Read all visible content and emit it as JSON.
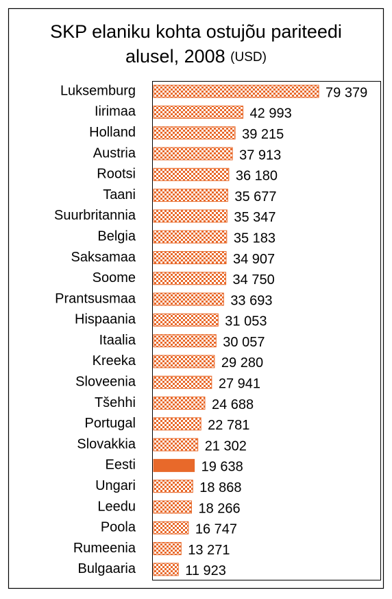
{
  "chart_data": {
    "type": "barh",
    "title": [
      "SKP elaniku kohta ostujõu pariteedi",
      "alusel, 2008"
    ],
    "unit": "(USD)",
    "categories": [
      "Luksemburg",
      "Iirimaa",
      "Holland",
      "Austria",
      "Rootsi",
      "Taani",
      "Suurbritannia",
      "Belgia",
      "Saksamaa",
      "Soome",
      "Prantsusmaa",
      "Hispaania",
      "Itaalia",
      "Kreeka",
      "Sloveenia",
      "Tšehhi",
      "Portugal",
      "Slovakkia",
      "Eesti",
      "Ungari",
      "Leedu",
      "Poola",
      "Rumeenia",
      "Bulgaaria"
    ],
    "values": [
      79379,
      42993,
      39215,
      37913,
      36180,
      35677,
      35347,
      35183,
      34907,
      34750,
      33693,
      31053,
      30057,
      29280,
      27941,
      24688,
      22781,
      21302,
      19638,
      18868,
      18266,
      16747,
      13271,
      11923
    ],
    "value_labels": [
      "79 379",
      "42 993",
      "39 215",
      "37 913",
      "36 180",
      "35 677",
      "35 347",
      "35 183",
      "34 907",
      "34 750",
      "33 693",
      "31 053",
      "30 057",
      "29 280",
      "27 941",
      "24 688",
      "22 781",
      "21 302",
      "19 638",
      "18 868",
      "18 266",
      "16 747",
      "13 271",
      "11 923"
    ],
    "color": "#e8692a",
    "highlight": "Eesti",
    "xlim": [
      0,
      109000
    ]
  }
}
